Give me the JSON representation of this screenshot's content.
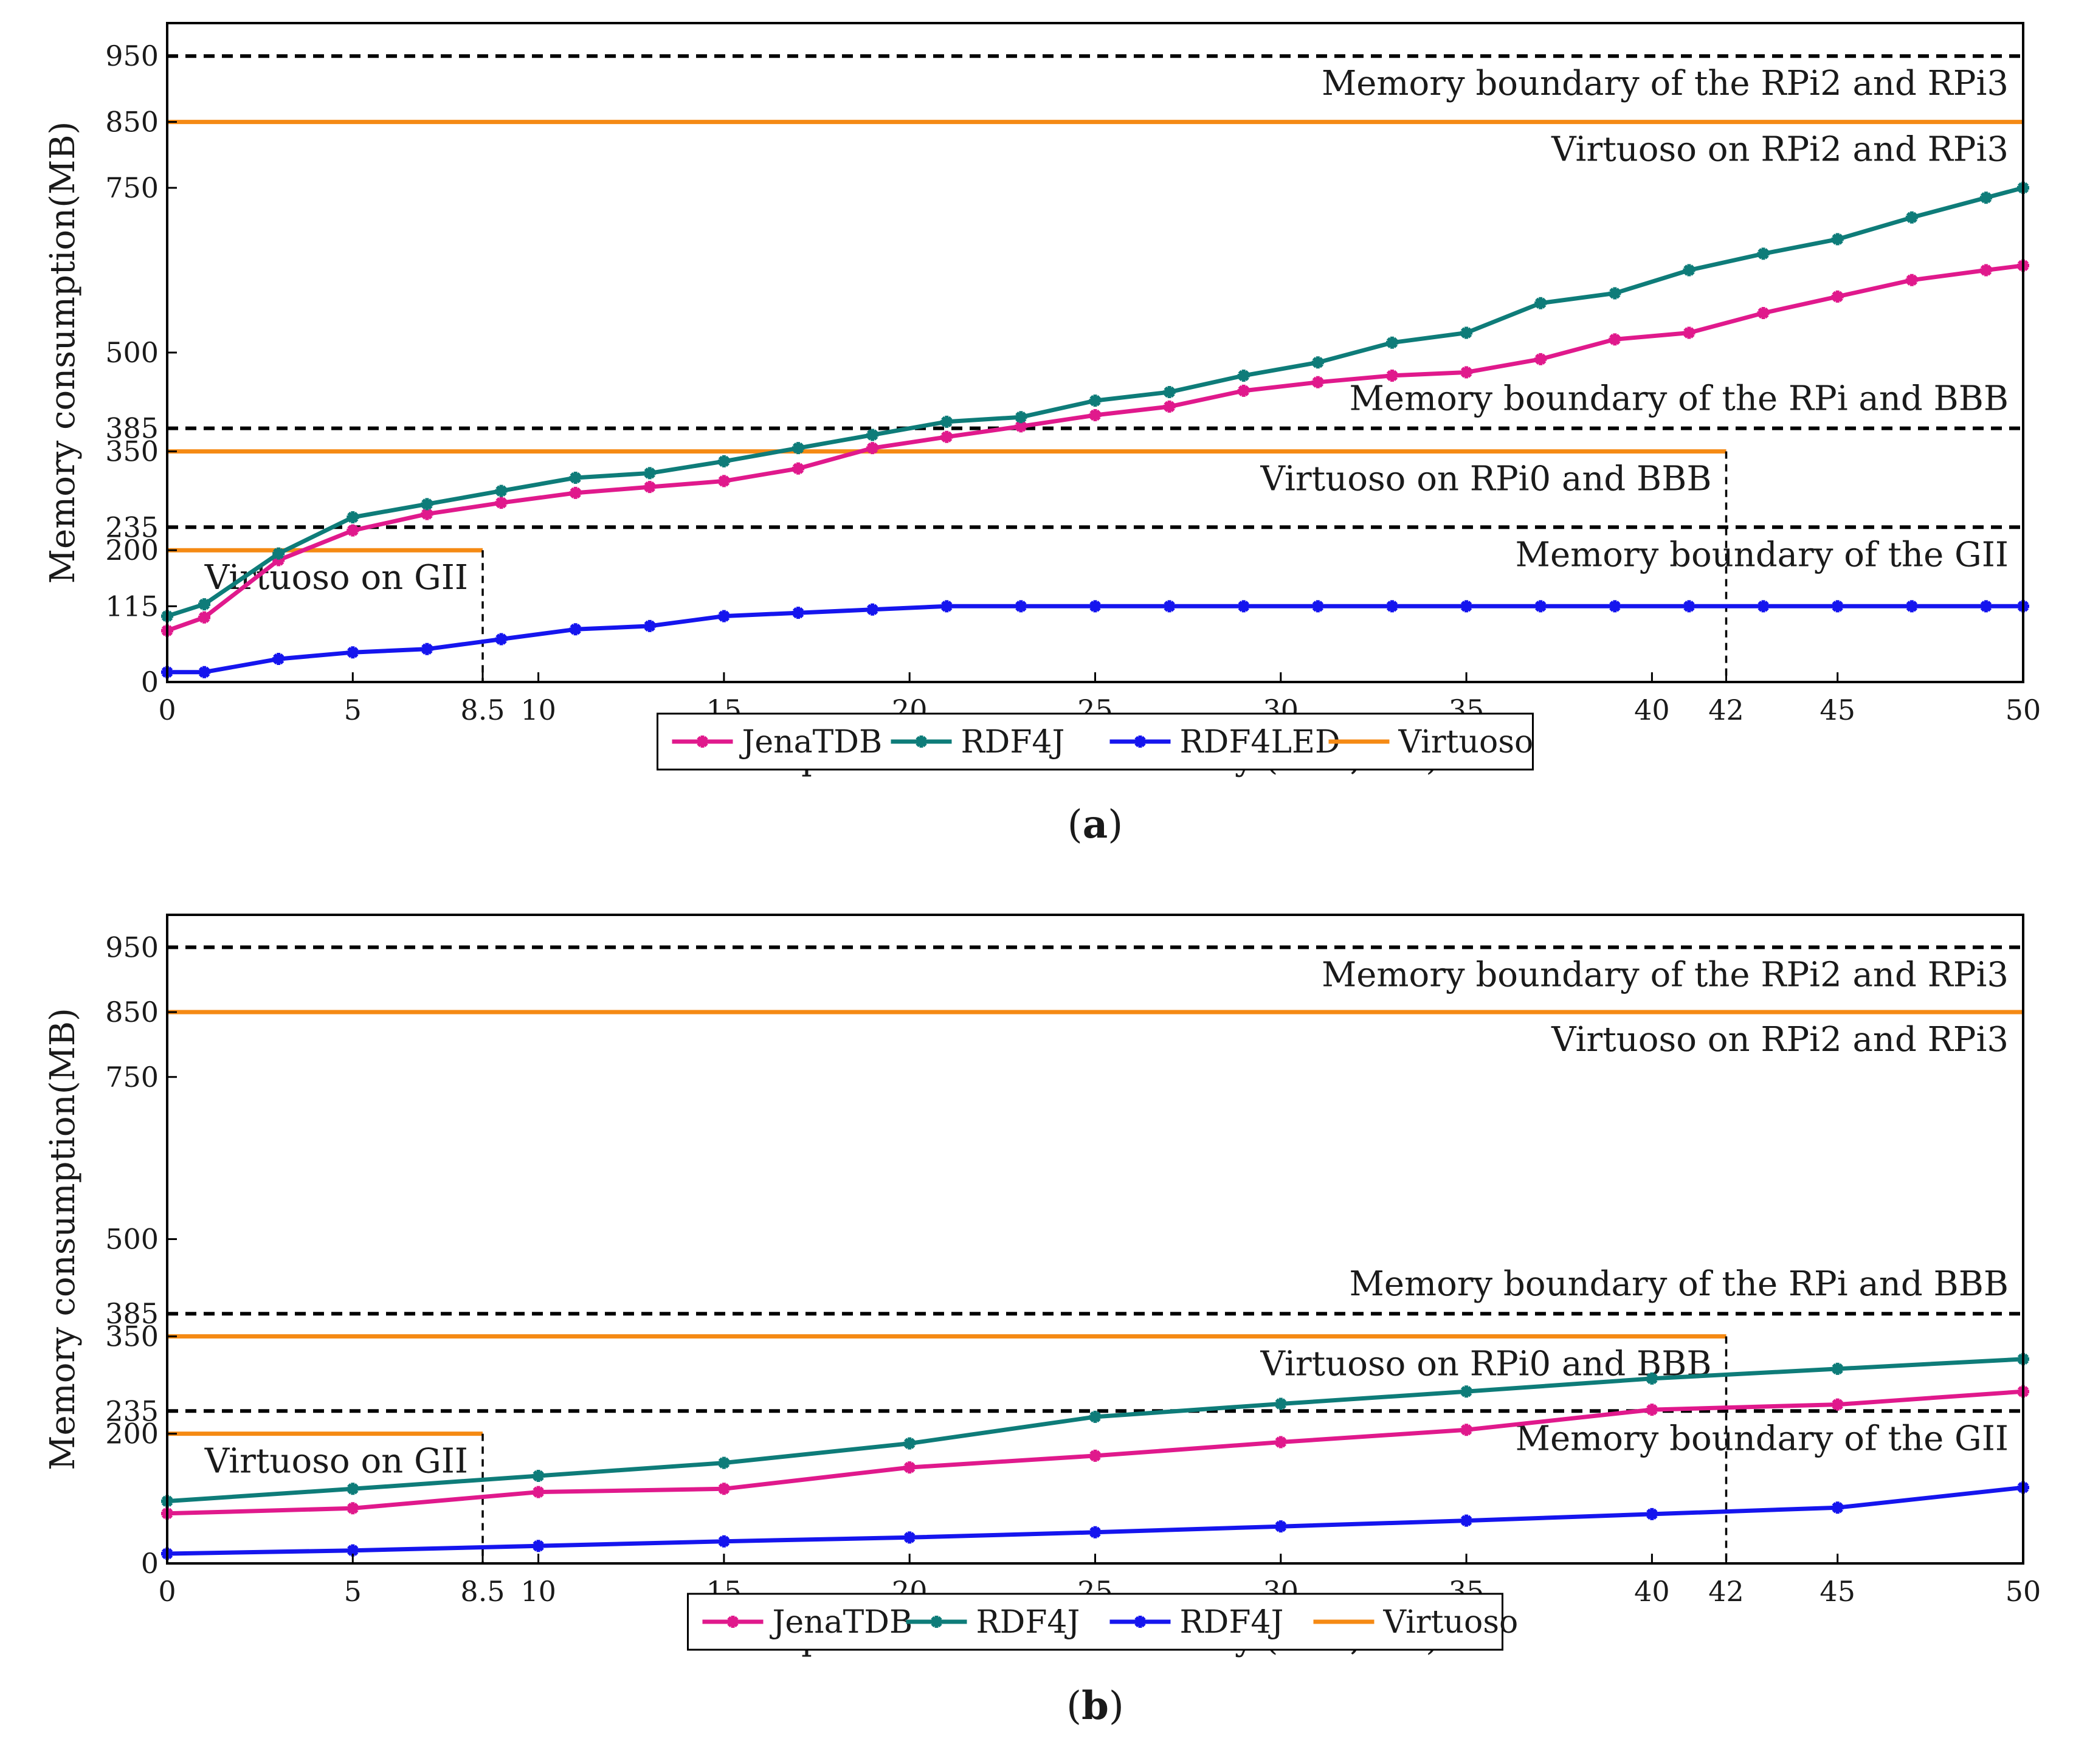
{
  "chart_data": [
    {
      "type": "line",
      "caption_letter": "a",
      "ylabel": "Memory consumption(MB)",
      "xlabel": "Triples stored in the memory (×10,000)",
      "xlim": [
        0,
        50
      ],
      "ylim": [
        0,
        1000
      ],
      "xticks": [
        0,
        5,
        8.5,
        10,
        15,
        20,
        25,
        30,
        35,
        40,
        42,
        45,
        50
      ],
      "yticks": [
        0,
        115,
        200,
        235,
        350,
        385,
        500,
        750,
        850,
        950
      ],
      "series": [
        {
          "name": "JenaTDB",
          "color": "#e0198c",
          "x": [
            0,
            1,
            3,
            5,
            7,
            9,
            11,
            13,
            15,
            17,
            19,
            21,
            23,
            25,
            27,
            29,
            31,
            33,
            35,
            37,
            39,
            41,
            43,
            45,
            47,
            49,
            50
          ],
          "y": [
            78,
            98,
            185,
            230,
            255,
            272,
            287,
            296,
            305,
            324,
            355,
            372,
            388,
            405,
            418,
            442,
            455,
            465,
            470,
            490,
            520,
            530,
            560,
            585,
            610,
            625,
            632
          ]
        },
        {
          "name": "RDF4J",
          "color": "#0e7c79",
          "x": [
            0,
            1,
            3,
            5,
            7,
            9,
            11,
            13,
            15,
            17,
            19,
            21,
            23,
            25,
            27,
            29,
            31,
            33,
            35,
            37,
            39,
            41,
            43,
            45,
            47,
            49,
            50
          ],
          "y": [
            100,
            118,
            195,
            250,
            270,
            290,
            310,
            317,
            335,
            355,
            375,
            395,
            402,
            427,
            440,
            465,
            485,
            515,
            530,
            575,
            590,
            625,
            650,
            672,
            705,
            735,
            750
          ]
        },
        {
          "name": "RDF4LED",
          "color": "#1515ee",
          "x": [
            0,
            1,
            3,
            5,
            7,
            9,
            11,
            13,
            15,
            17,
            19,
            21,
            23,
            25,
            27,
            29,
            31,
            33,
            35,
            37,
            39,
            41,
            43,
            45,
            47,
            49,
            50
          ],
          "y": [
            15,
            15,
            35,
            45,
            50,
            65,
            80,
            85,
            100,
            105,
            110,
            115,
            115,
            115,
            115,
            115,
            115,
            115,
            115,
            115,
            115,
            115,
            115,
            115,
            115,
            115,
            115
          ]
        },
        {
          "name": "Virtuoso",
          "color": "#f58a14",
          "x": [],
          "y": []
        }
      ],
      "reference_lines": [
        {
          "y": 950,
          "x_end": 50,
          "style": "dashed",
          "label": "Memory boundary of the RPi2 and RPi3",
          "label_side": "below"
        },
        {
          "y": 850,
          "x_end": 50,
          "style": "solid",
          "label": "Virtuoso on RPi2 and RPi3",
          "label_side": "below"
        },
        {
          "y": 385,
          "x_end": 50,
          "style": "dashed",
          "label": "Memory boundary of the RPi and BBB",
          "label_side": "above"
        },
        {
          "y": 350,
          "x_end": 42,
          "style": "solid",
          "label": "Virtuoso on RPi0 and BBB",
          "label_side": "below"
        },
        {
          "y": 235,
          "x_end": 50,
          "style": "dashed",
          "label": "Memory boundary of the GII",
          "label_side": "below"
        },
        {
          "y": 200,
          "x_end": 8.5,
          "style": "solid",
          "label": "Virtuoso on GII",
          "label_side": "below"
        }
      ],
      "vertical_markers": [
        {
          "x": 8.5,
          "y_top": 200
        },
        {
          "x": 42,
          "y_top": 350
        }
      ],
      "legend": [
        "JenaTDB",
        "RDF4J",
        "RDF4LED",
        "Virtuoso"
      ]
    },
    {
      "type": "line",
      "caption_letter": "b",
      "ylabel": "Memory consumption(MB)",
      "xlabel": "Triples stored in the memory (×10,000)",
      "xlim": [
        0,
        50
      ],
      "ylim": [
        0,
        1000
      ],
      "xticks": [
        0,
        5,
        8.5,
        10,
        15,
        20,
        25,
        30,
        35,
        40,
        42,
        45,
        50
      ],
      "yticks": [
        0,
        200,
        235,
        350,
        385,
        500,
        750,
        850,
        950
      ],
      "series": [
        {
          "name": "JenaTDB",
          "color": "#e0198c",
          "x": [
            0,
            5,
            10,
            15,
            20,
            25,
            30,
            35,
            40,
            45,
            50
          ],
          "y": [
            77,
            85,
            110,
            115,
            148,
            166,
            187,
            206,
            237,
            245,
            265
          ]
        },
        {
          "name": "RDF4J",
          "color": "#0e7c79",
          "x": [
            0,
            5,
            10,
            15,
            20,
            25,
            30,
            35,
            40,
            45,
            50
          ],
          "y": [
            96,
            115,
            135,
            155,
            185,
            226,
            246,
            265,
            285,
            300,
            315
          ]
        },
        {
          "name": "RDF4J",
          "color": "#1515ee",
          "x": [
            0,
            5,
            10,
            15,
            20,
            25,
            30,
            35,
            40,
            45,
            50
          ],
          "y": [
            15,
            20,
            27,
            34,
            40,
            48,
            57,
            66,
            76,
            86,
            117
          ]
        },
        {
          "name": "Virtuoso",
          "color": "#f58a14",
          "x": [],
          "y": []
        }
      ],
      "reference_lines": [
        {
          "y": 950,
          "x_end": 50,
          "style": "dashed",
          "label": "Memory boundary of the RPi2 and RPi3",
          "label_side": "below"
        },
        {
          "y": 850,
          "x_end": 50,
          "style": "solid",
          "label": "Virtuoso on RPi2 and RPi3",
          "label_side": "below"
        },
        {
          "y": 385,
          "x_end": 50,
          "style": "dashed",
          "label": "Memory boundary of the RPi and BBB",
          "label_side": "above"
        },
        {
          "y": 350,
          "x_end": 42,
          "style": "solid",
          "label": "Virtuoso on RPi0 and BBB",
          "label_side": "below"
        },
        {
          "y": 235,
          "x_end": 50,
          "style": "dashed",
          "label": "Memory boundary of the GII",
          "label_side": "below"
        },
        {
          "y": 200,
          "x_end": 8.5,
          "style": "solid",
          "label": "Virtuoso on GII",
          "label_side": "below"
        }
      ],
      "vertical_markers": [
        {
          "x": 8.5,
          "y_top": 200
        },
        {
          "x": 42,
          "y_top": 350
        }
      ],
      "legend": [
        "JenaTDB",
        "RDF4J",
        "RDF4J",
        "Virtuoso"
      ]
    }
  ]
}
